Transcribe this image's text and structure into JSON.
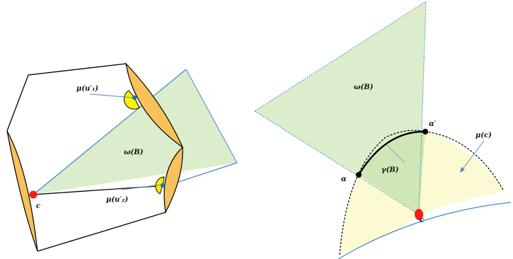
{
  "left_panel": {
    "label_mu_u1": "μ(u′₁)",
    "label_omega": "ω(B)",
    "label_mu_u2": "μ(u′₂)",
    "label_c": "c"
  },
  "right_panel": {
    "label_omega": "ω(B)",
    "label_alpha_prime": "α′",
    "label_mu_c": "μ(c)",
    "label_gamma": "γ(B)",
    "label_alpha": "α",
    "label_c": "c"
  },
  "colors": {
    "green_region": "#dcedcc",
    "yellow_region": "#fcfad2",
    "orange_lens": "#f9c15a",
    "yellow_disk": "#fff200",
    "blue_line": "#4b8bc8",
    "red_point": "#ff1a1a",
    "blue_point": "#1b75bb",
    "black": "#000000"
  }
}
